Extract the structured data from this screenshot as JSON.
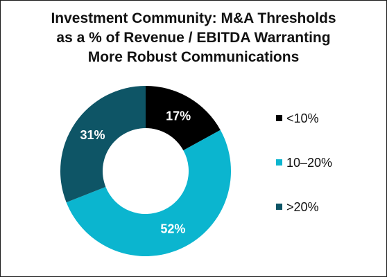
{
  "chart_data": {
    "type": "pie",
    "donut": true,
    "title_lines": [
      "Investment Community: M&A Thresholds",
      "as a % of Revenue / EBITDA Warranting",
      "More Robust Communications"
    ],
    "slices": [
      {
        "label": "<10%",
        "value": 17,
        "display": "17%",
        "color": "#000000"
      },
      {
        "label": "10–20%",
        "value": 52,
        "display": "52%",
        "color": "#0bb5cf"
      },
      {
        "label": ">20%",
        "value": 31,
        "display": "31%",
        "color": "#0e5566"
      }
    ],
    "legend_position": "right"
  }
}
